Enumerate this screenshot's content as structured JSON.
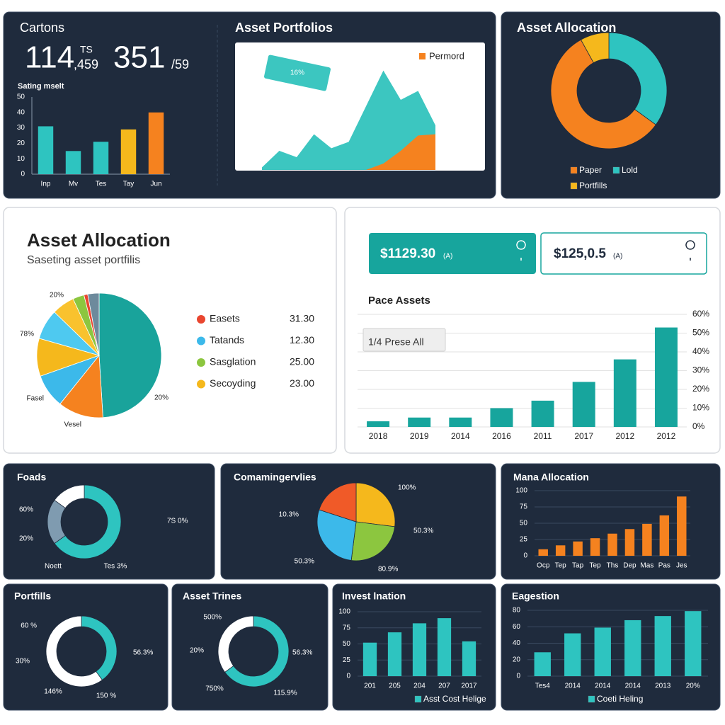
{
  "kpi": {
    "title": "Cartons",
    "value_a": "114",
    "unit_a": "TS",
    "sub_a": ",459",
    "value_b": "351",
    "sub_b": "/59"
  },
  "cards": [
    {
      "value": "$1129.30",
      "unit": "(A)"
    },
    {
      "value": "$125,0.5",
      "unit": "(A)"
    }
  ],
  "chart_data": [
    {
      "type": "bar",
      "title": "Sating mselt",
      "categories": [
        "Inp",
        "Mv",
        "Tes",
        "Tay",
        "Jun"
      ],
      "values": [
        31,
        15,
        21,
        29,
        40
      ],
      "colors": [
        "#2ec4c0",
        "#2ec4c0",
        "#2ec4c0",
        "#f5b81c",
        "#f5821f"
      ],
      "ylim": [
        0,
        50
      ],
      "yticks": [
        0,
        10,
        20,
        30,
        40,
        50
      ],
      "grid": false
    },
    {
      "type": "area",
      "title": "Asset Portfolios",
      "x": [
        0,
        1,
        2,
        3,
        4,
        5,
        6,
        7,
        8,
        9,
        10
      ],
      "xlim": [
        0,
        10
      ],
      "ylim": [
        0,
        100
      ],
      "series": [
        {
          "color": "#3cc6c0",
          "values": [
            2,
            15,
            10,
            28,
            17,
            22,
            50,
            78,
            55,
            62,
            35
          ]
        },
        {
          "name": "Permord",
          "color": "#f5821f",
          "values": [
            null,
            null,
            null,
            null,
            null,
            null,
            0,
            5,
            15,
            27,
            28
          ]
        }
      ],
      "annotations": [
        "16%"
      ]
    },
    {
      "type": "donut",
      "title": "Asset Allocation",
      "categories": [
        "Lold",
        "Paper",
        "Portfills"
      ],
      "values": [
        35,
        57,
        8
      ],
      "colors": [
        "#2ec4c0",
        "#f5821f",
        "#f5b81c"
      ]
    },
    {
      "type": "pie",
      "title": "Asset Allocation",
      "subtitle": "Saseting asset portfilis",
      "values": [
        50,
        12,
        9,
        10,
        8,
        6,
        3,
        1,
        3
      ],
      "colors": [
        "#19a39b",
        "#f5821f",
        "#3cb9ea",
        "#f5b81c",
        "#4ec9f0",
        "#f9c22e",
        "#8cc63f",
        "#e9462f",
        "#6d8a9c"
      ],
      "annotations": [
        "20%",
        "78%",
        "Fasel",
        "Vesel",
        "20%"
      ],
      "legend": {
        "names": [
          "Easets",
          "Tatands",
          "Sasglation",
          "Secoyding"
        ],
        "values": [
          "31.30",
          "12.30",
          "25.00",
          "23.00"
        ],
        "colors": [
          "#e9462f",
          "#3cb9ea",
          "#8cc63f",
          "#f5b81c"
        ]
      }
    },
    {
      "type": "bar",
      "title": "Pace Assets",
      "categories": [
        "2018",
        "2019",
        "2014",
        "2016",
        "2011",
        "2017",
        "2012",
        "2012"
      ],
      "values": [
        3,
        5,
        5,
        10,
        14,
        24,
        36,
        53
      ],
      "color": "#17a59d",
      "ylim": [
        0,
        60
      ],
      "yticks": [
        {
          "value": 0,
          "label": "0%"
        },
        {
          "value": 10,
          "label": "10%"
        },
        {
          "value": 20,
          "label": "20%"
        },
        {
          "value": 30,
          "label": "30%"
        },
        {
          "value": 40,
          "label": "40%"
        },
        {
          "value": 50,
          "label": "50%"
        },
        {
          "value": 60,
          "label": "60%"
        }
      ],
      "grid": true,
      "annotations": [
        "1/4 Prese All"
      ]
    },
    {
      "type": "donut",
      "title": "Foads",
      "values": [
        65,
        20,
        15
      ],
      "colors": [
        "#2ec4c0",
        "#7f9bb0",
        "#ffffff"
      ],
      "annotations": [
        "60%",
        "20%",
        "Noett",
        "Tes 3%",
        "7S 0%"
      ]
    },
    {
      "type": "pie",
      "title": "Comamingervlies",
      "values": [
        27,
        25,
        28,
        20
      ],
      "colors": [
        "#f5b81c",
        "#8cc63f",
        "#3cb9ea",
        "#f05a28"
      ],
      "annotations": [
        "100%",
        "10.3%",
        "50.3%",
        "50.3%",
        "80.9%"
      ]
    },
    {
      "type": "bar",
      "title": "Mana Allocation",
      "categories": [
        "Ocp",
        "Tep",
        "Tap",
        "Tep",
        "Ths",
        "Dep",
        "Mas",
        "Pas",
        "Jes"
      ],
      "values": [
        10,
        16,
        22,
        27,
        34,
        41,
        49,
        62,
        91
      ],
      "color": "#f5821f",
      "ylim": [
        0,
        100
      ],
      "yticks": [
        0,
        25,
        50,
        75,
        100
      ],
      "grid": true
    },
    {
      "type": "donut",
      "title": "Portfills",
      "values": [
        40,
        60
      ],
      "colors": [
        "#2ec4c0",
        "#ffffff"
      ],
      "annotations": [
        "60 %",
        "30%",
        "146%",
        "56.3%",
        "150 %"
      ]
    },
    {
      "type": "donut",
      "title": "Asset Trines",
      "values": [
        65,
        35
      ],
      "colors": [
        "#2ec4c0",
        "#ffffff"
      ],
      "annotations": [
        "500%",
        "20%",
        "750%",
        "56.3%",
        "115.9%"
      ]
    },
    {
      "type": "bar",
      "title": "Invest lnation",
      "categories": [
        "201",
        "205",
        "204",
        "207",
        "2017"
      ],
      "ylim": [
        0,
        100
      ],
      "yticks": [
        0,
        25,
        50,
        75,
        100
      ],
      "grid": true,
      "series": [
        {
          "name": "Asst Cost Helige",
          "color": "#2ec4c0",
          "values": [
            52,
            68,
            82,
            90,
            54
          ]
        }
      ]
    },
    {
      "type": "bar",
      "title": "Eagestion",
      "categories": [
        "Tes4",
        "2014",
        "2014",
        "2014",
        "2013",
        "20%"
      ],
      "ylim": [
        0,
        80
      ],
      "yticks": [
        0,
        20,
        40,
        60,
        80
      ],
      "grid": true,
      "series": [
        {
          "name": "Coeti Heling",
          "color": "#2ec4c0",
          "values": [
            29,
            52,
            59,
            68,
            73,
            79
          ]
        }
      ]
    }
  ]
}
